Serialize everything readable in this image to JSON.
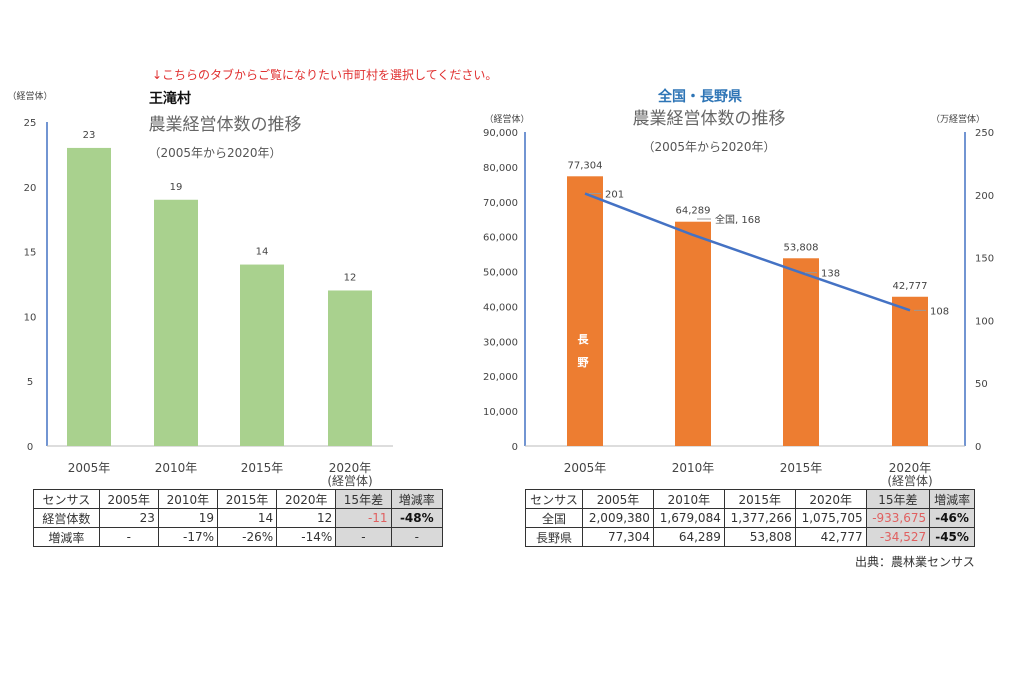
{
  "notice": "↓こちらのタブからご覧になりたい市町村を選択してください。",
  "source": "出典：農林業センサス",
  "colors": {
    "notice": "#e03030",
    "green_bar": "#a9d18e",
    "orange_bar": "#ed7d31",
    "line": "#4472c4",
    "region_title": "#2e75b6",
    "axis": "#4472c4"
  },
  "chart_data": [
    {
      "type": "bar",
      "region": "王滝村",
      "title": "農業経営体数の推移",
      "subtitle": "（2005年から2020年）",
      "ylabel": "（経営体）",
      "xlabel": "(経営体)",
      "categories": [
        "2005年",
        "2010年",
        "2015年",
        "2020年"
      ],
      "values": [
        23,
        19,
        14,
        12
      ],
      "ylim": [
        0,
        25
      ],
      "yticks": [
        "0",
        "5",
        "10",
        "15",
        "20",
        "25"
      ],
      "grid": false
    },
    {
      "type": "bar+line",
      "region": "全国・長野県",
      "title": "農業経営体数の推移",
      "subtitle": "（2005年から2020年）",
      "ylabel": "（経営体）",
      "y2label": "（万経営体）",
      "xlabel": "(経営体)",
      "categories": [
        "2005年",
        "2010年",
        "2015年",
        "2020年"
      ],
      "series": [
        {
          "name": "長野",
          "type": "bar",
          "axis": "left",
          "values": [
            77304,
            64289,
            53808,
            42777
          ],
          "labels": [
            "77,304",
            "64,289",
            "53,808",
            "42,777"
          ]
        },
        {
          "name": "全国",
          "type": "line",
          "axis": "right",
          "values": [
            201,
            168,
            138,
            108
          ],
          "labels": [
            "201",
            "全国, 168",
            "138",
            "108"
          ]
        }
      ],
      "ylim": [
        0,
        90000
      ],
      "y2lim": [
        0,
        250
      ],
      "yticks": [
        "0",
        "10,000",
        "20,000",
        "30,000",
        "40,000",
        "50,000",
        "60,000",
        "70,000",
        "80,000",
        "90,000"
      ],
      "y2ticks": [
        "0",
        "50",
        "100",
        "150",
        "200",
        "250"
      ],
      "grid": false
    }
  ],
  "tables": [
    {
      "header": [
        "センサス",
        "2005年",
        "2010年",
        "2015年",
        "2020年",
        "15年差",
        "増減率"
      ],
      "rows": [
        [
          "経営体数",
          "23",
          "19",
          "14",
          "12",
          "-11",
          "-48%"
        ],
        [
          "増減率",
          "-",
          "-17%",
          "-26%",
          "-14%",
          "-",
          "-"
        ]
      ]
    },
    {
      "header": [
        "センサス",
        "2005年",
        "2010年",
        "2015年",
        "2020年",
        "15年差",
        "増減率"
      ],
      "rows": [
        [
          "全国",
          "2,009,380",
          "1,679,084",
          "1,377,266",
          "1,075,705",
          "-933,675",
          "-46%"
        ],
        [
          "長野県",
          "77,304",
          "64,289",
          "53,808",
          "42,777",
          "-34,527",
          "-45%"
        ]
      ]
    }
  ]
}
